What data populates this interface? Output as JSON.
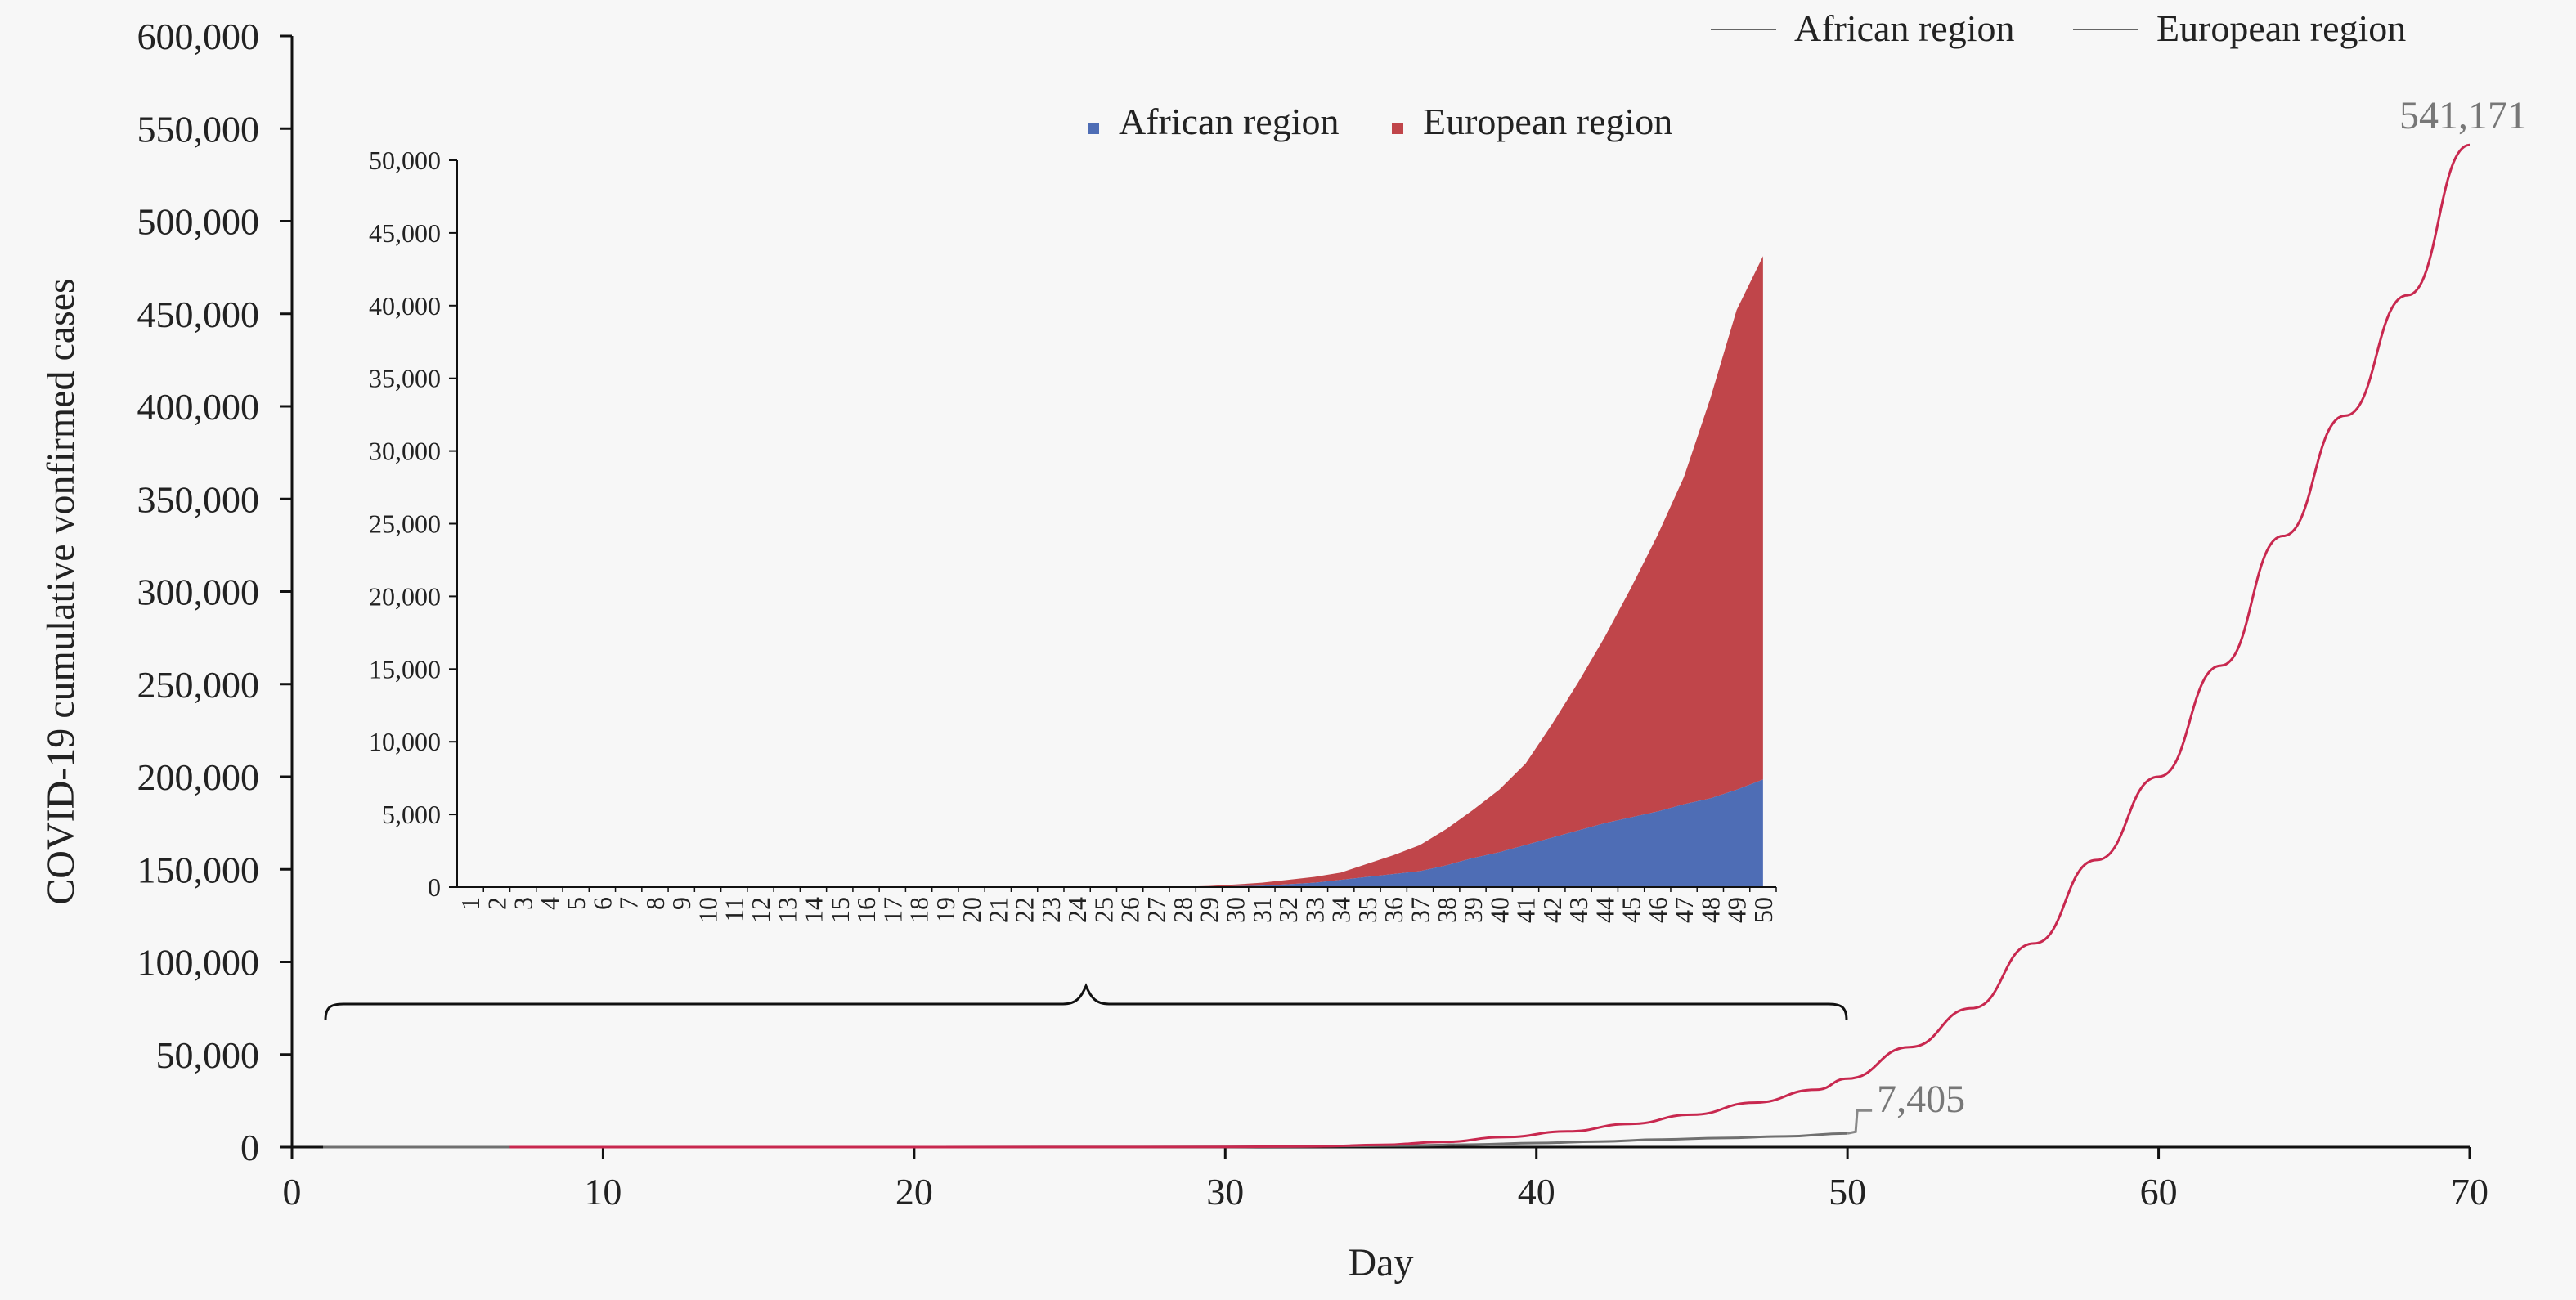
{
  "chart_data": [
    {
      "type": "line",
      "title": "",
      "xlabel": "Day",
      "ylabel": "COVID-19 cumulative vonfirmed cases",
      "xlim": [
        0,
        70
      ],
      "ylim": [
        0,
        600000
      ],
      "x_ticks": [
        "0",
        "10",
        "20",
        "30",
        "40",
        "50",
        "60",
        "70"
      ],
      "y_ticks": [
        "0",
        "50,000",
        "100,000",
        "150,000",
        "200,000",
        "250,000",
        "300,000",
        "350,000",
        "400,000",
        "450,000",
        "500,000",
        "550,000",
        "600,000"
      ],
      "legend_position": "top-right",
      "grid": false,
      "series": [
        {
          "name": "African region",
          "color": "#707070",
          "x": [
            1,
            10,
            20,
            30,
            32,
            34,
            36,
            38,
            40,
            42,
            44,
            46,
            48,
            50
          ],
          "y": [
            0,
            0,
            5,
            100,
            300,
            600,
            900,
            1400,
            2200,
            3000,
            4100,
            4900,
            5800,
            7405
          ],
          "end_label": "7,405"
        },
        {
          "name": "European region",
          "color": "#c8284f",
          "x": [
            7,
            20,
            30,
            33,
            35,
            37,
            39,
            41,
            43,
            45,
            47,
            49,
            50,
            52,
            54,
            56,
            58,
            60,
            62,
            64,
            66,
            68,
            70
          ],
          "y": [
            0,
            0,
            100,
            400,
            1200,
            2800,
            5400,
            8500,
            12500,
            17500,
            24000,
            31000,
            37000,
            54000,
            75000,
            110000,
            155000,
            200000,
            260000,
            330000,
            395000,
            460000,
            541171
          ],
          "end_label": "541,171"
        }
      ]
    },
    {
      "type": "area",
      "stacked": true,
      "title": "",
      "xlabel": "",
      "ylabel": "",
      "ylim": [
        0,
        50000
      ],
      "categories": [
        "1",
        "2",
        "3",
        "4",
        "5",
        "6",
        "7",
        "8",
        "9",
        "10",
        "11",
        "12",
        "13",
        "14",
        "15",
        "16",
        "17",
        "18",
        "19",
        "20",
        "21",
        "22",
        "23",
        "24",
        "25",
        "26",
        "27",
        "28",
        "29",
        "30",
        "31",
        "32",
        "33",
        "34",
        "35",
        "36",
        "37",
        "38",
        "39",
        "40",
        "41",
        "42",
        "43",
        "44",
        "45",
        "46",
        "47",
        "48",
        "49",
        "50"
      ],
      "y_ticks": [
        "0",
        "5,000",
        "10,000",
        "15,000",
        "20,000",
        "25,000",
        "30,000",
        "35,000",
        "40,000",
        "45,000",
        "50,000"
      ],
      "legend_position": "top-center",
      "series": [
        {
          "name": "African region",
          "color": "#4e6db5",
          "values": [
            0,
            0,
            0,
            0,
            0,
            0,
            0,
            0,
            0,
            0,
            0,
            0,
            0,
            0,
            0,
            0,
            0,
            0,
            0,
            0,
            0,
            0,
            0,
            0,
            0,
            0,
            0,
            5,
            20,
            60,
            100,
            200,
            300,
            500,
            700,
            900,
            1100,
            1500,
            2000,
            2400,
            2900,
            3400,
            3900,
            4400,
            4800,
            5200,
            5700,
            6100,
            6700,
            7405
          ]
        },
        {
          "name": "European region",
          "color": "#c0454a",
          "values": [
            0,
            0,
            0,
            0,
            0,
            0,
            0,
            0,
            0,
            0,
            0,
            0,
            0,
            0,
            0,
            0,
            0,
            0,
            0,
            0,
            0,
            0,
            0,
            0,
            0,
            0,
            0,
            20,
            60,
            120,
            200,
            300,
            400,
            500,
            900,
            1300,
            1800,
            2500,
            3300,
            4300,
            5600,
            7800,
            10200,
            12800,
            15800,
            19000,
            22500,
            27500,
            33000,
            36000
          ]
        }
      ]
    }
  ]
}
